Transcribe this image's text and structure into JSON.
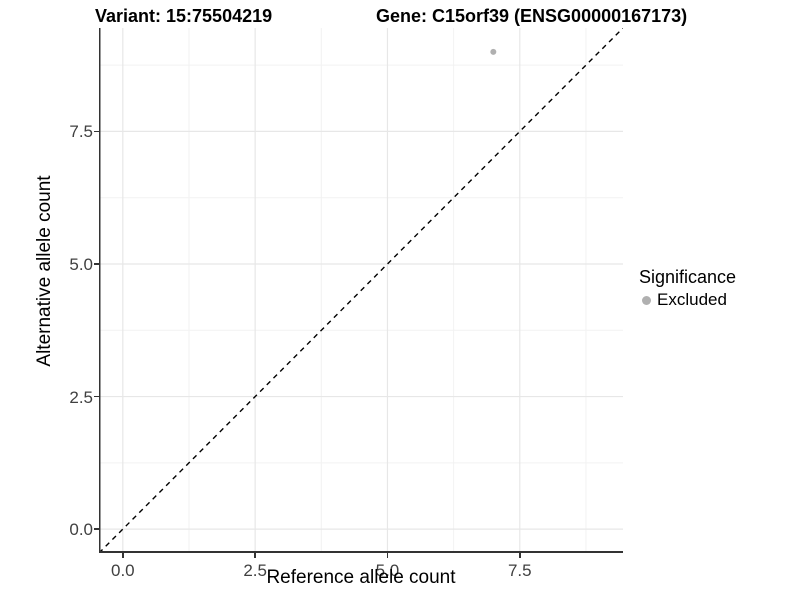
{
  "header": {
    "variant_title": "Variant: 15:75504219",
    "gene_title": "Gene: C15orf39 (ENSG00000167173)"
  },
  "legend": {
    "title": "Significance",
    "items": [
      {
        "label": "Excluded",
        "color": "#b0b0b0",
        "marker": "circle"
      }
    ]
  },
  "chart_data": {
    "type": "scatter",
    "xlabel": "Reference allele count",
    "ylabel": "Alternative allele count",
    "xlim": [
      -0.45,
      9.45
    ],
    "ylim": [
      -0.45,
      9.45
    ],
    "x_major_ticks": [
      0,
      2.5,
      5,
      7.5
    ],
    "x_tick_labels": [
      "0.0",
      "2.5",
      "5.0",
      "7.5"
    ],
    "y_major_ticks": [
      0,
      2.5,
      5,
      7.5
    ],
    "y_tick_labels": [
      "0.0",
      "2.5",
      "5.0",
      "7.5"
    ],
    "x_minor_ticks": [
      1.25,
      3.75,
      6.25,
      8.75
    ],
    "y_minor_ticks": [
      1.25,
      3.75,
      6.25,
      8.75
    ],
    "grid": true,
    "legend_position": "right",
    "reference_line": {
      "type": "identity",
      "slope": 1,
      "intercept": 0,
      "linetype": "dashed",
      "color": "#000000"
    },
    "series": [
      {
        "name": "Excluded",
        "color": "#b0b0b0",
        "points": [
          {
            "x": 7,
            "y": 9
          }
        ]
      }
    ]
  },
  "colors": {
    "background": "#ffffff",
    "grid_major": "#e7e7e7",
    "grid_minor": "#f2f2f2",
    "axis_line": "#333333",
    "tick_label": "#404040"
  }
}
